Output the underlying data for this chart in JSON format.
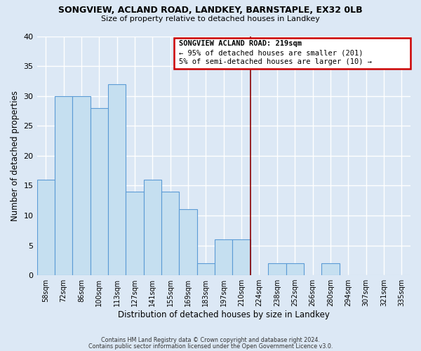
{
  "title": "SONGVIEW, ACLAND ROAD, LANDKEY, BARNSTAPLE, EX32 0LB",
  "subtitle": "Size of property relative to detached houses in Landkey",
  "xlabel": "Distribution of detached houses by size in Landkey",
  "ylabel": "Number of detached properties",
  "bin_labels": [
    "58sqm",
    "72sqm",
    "86sqm",
    "100sqm",
    "113sqm",
    "127sqm",
    "141sqm",
    "155sqm",
    "169sqm",
    "183sqm",
    "197sqm",
    "210sqm",
    "224sqm",
    "238sqm",
    "252sqm",
    "266sqm",
    "280sqm",
    "294sqm",
    "307sqm",
    "321sqm",
    "335sqm"
  ],
  "bar_values": [
    16,
    30,
    30,
    28,
    32,
    14,
    16,
    14,
    11,
    2,
    6,
    6,
    0,
    2,
    2,
    0,
    2,
    0,
    0,
    0,
    0
  ],
  "bar_color": "#c5dff0",
  "bar_edge_color": "#5b9bd5",
  "vline_color": "#8b0000",
  "annotation_title": "SONGVIEW ACLAND ROAD: 219sqm",
  "annotation_line1": "← 95% of detached houses are smaller (201)",
  "annotation_line2": "5% of semi-detached houses are larger (10) →",
  "annotation_box_color": "#ffffff",
  "annotation_box_edge": "#cc0000",
  "ylim": [
    0,
    40
  ],
  "yticks": [
    0,
    5,
    10,
    15,
    20,
    25,
    30,
    35,
    40
  ],
  "footer1": "Contains HM Land Registry data © Crown copyright and database right 2024.",
  "footer2": "Contains public sector information licensed under the Open Government Licence v3.0.",
  "background_color": "#dce8f5"
}
